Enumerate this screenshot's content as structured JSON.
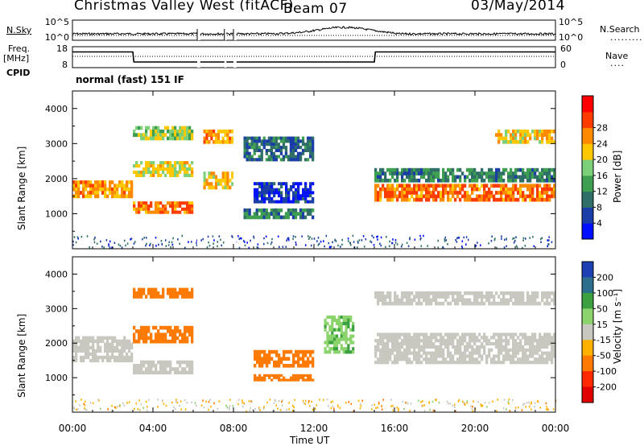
{
  "header": {
    "station": "Christmas Valley West (fitACF)",
    "beam": "Beam 07",
    "date": "03/May/2014"
  },
  "side_labels": {
    "nsky": "N.Sky",
    "freq": "Freq.",
    "freq_unit": "[MHz]",
    "cpid": "CPID",
    "nsearch": "N.Search",
    "nave": "Nave"
  },
  "cpid_text": "normal (fast) 151 IF",
  "axis_labels": {
    "slant_range": "Slant Range [km]",
    "time": "Time UT",
    "power": "Power [dB]",
    "velocity": "Velocity [m s⁻¹]"
  },
  "colors": {
    "power_scale": [
      "#0010ff",
      "#1a3da8",
      "#2f6f68",
      "#3f9f50",
      "#7dd07a",
      "#ffc800",
      "#ff8a00",
      "#ff3c00",
      "#ff0000"
    ],
    "velocity_scale": [
      "#1e3fb4",
      "#2c6f8c",
      "#3aa040",
      "#8bd36c",
      "#c8c8c0",
      "#ffb000",
      "#ff7a00",
      "#ff2800",
      "#e00000"
    ],
    "trace": "#000000"
  },
  "chart_data": [
    {
      "type": "line",
      "name": "noise-panel",
      "left_ticks": [
        "10^5",
        "10^0"
      ],
      "right_ticks": [
        "10^5",
        "10^0"
      ],
      "x_range": [
        0,
        24
      ]
    },
    {
      "type": "line",
      "name": "frequency-panel",
      "left_ticks": [
        "18",
        "8"
      ],
      "right_ticks": [
        "60",
        "0"
      ],
      "series_freq": [
        {
          "x": 0,
          "y": 15.5
        },
        {
          "x": 3.0,
          "y": 15.5
        },
        {
          "x": 3.05,
          "y": 10.7
        },
        {
          "x": 15.0,
          "y": 10.7
        },
        {
          "x": 15.05,
          "y": 15.5
        },
        {
          "x": 24,
          "y": 15.5
        }
      ],
      "x_range": [
        0,
        24
      ]
    },
    {
      "type": "heatmap",
      "name": "power",
      "ylabel": "Slant Range [km]",
      "y_ticks": [
        1000,
        2000,
        3000,
        4000
      ],
      "x_ticks": [
        "00:00",
        "04:00",
        "08:00",
        "12:00",
        "16:00",
        "20:00",
        "00:00"
      ],
      "y_range": [
        0,
        4500
      ],
      "x_range": [
        0,
        24
      ],
      "colorbar_ticks": [
        4,
        8,
        12,
        16,
        20,
        24,
        28
      ],
      "colorbar_label": "Power [dB]",
      "bands": [
        {
          "x": [
            0,
            3
          ],
          "y": [
            1450,
            1950
          ],
          "level": 24
        },
        {
          "x": [
            3,
            6
          ],
          "y": [
            1000,
            1350
          ],
          "level": 26
        },
        {
          "x": [
            3,
            6
          ],
          "y": [
            2050,
            2500
          ],
          "level": 20
        },
        {
          "x": [
            3,
            6
          ],
          "y": [
            3100,
            3500
          ],
          "level": 18
        },
        {
          "x": [
            6.5,
            8
          ],
          "y": [
            1700,
            2200
          ],
          "level": 22
        },
        {
          "x": [
            6.5,
            8
          ],
          "y": [
            3000,
            3400
          ],
          "level": 24
        },
        {
          "x": [
            8.5,
            12
          ],
          "y": [
            2500,
            3200
          ],
          "level": 10
        },
        {
          "x": [
            8.5,
            12
          ],
          "y": [
            850,
            1150
          ],
          "level": 12
        },
        {
          "x": [
            9,
            12
          ],
          "y": [
            1300,
            1900
          ],
          "level": 6
        },
        {
          "x": [
            15,
            24
          ],
          "y": [
            1350,
            1850
          ],
          "level": 26
        },
        {
          "x": [
            15,
            24
          ],
          "y": [
            1900,
            2300
          ],
          "level": 12
        },
        {
          "x": [
            21,
            24
          ],
          "y": [
            3000,
            3400
          ],
          "level": 22
        }
      ]
    },
    {
      "type": "heatmap",
      "name": "velocity",
      "ylabel": "Slant Range [km]",
      "y_ticks": [
        1000,
        2000,
        3000,
        4000
      ],
      "x_ticks": [
        "00:00",
        "04:00",
        "08:00",
        "12:00",
        "16:00",
        "20:00",
        "00:00"
      ],
      "y_range": [
        0,
        4500
      ],
      "x_range": [
        0,
        24
      ],
      "colorbar_ticks": [
        200,
        100,
        50,
        15,
        -15,
        -50,
        -100,
        -200
      ],
      "colorbar_label": "Velocity [m s⁻¹]",
      "bands": [
        {
          "x": [
            0,
            3
          ],
          "y": [
            1450,
            2200
          ],
          "level": 0
        },
        {
          "x": [
            3,
            6
          ],
          "y": [
            1100,
            1500
          ],
          "level": 0
        },
        {
          "x": [
            3,
            6
          ],
          "y": [
            2000,
            2500
          ],
          "level": -60
        },
        {
          "x": [
            3,
            6
          ],
          "y": [
            3300,
            3600
          ],
          "level": -60
        },
        {
          "x": [
            9,
            12
          ],
          "y": [
            900,
            1100
          ],
          "level": -60
        },
        {
          "x": [
            9,
            12
          ],
          "y": [
            1300,
            1800
          ],
          "level": -60
        },
        {
          "x": [
            12.5,
            14
          ],
          "y": [
            1700,
            2800
          ],
          "level": 30
        },
        {
          "x": [
            15,
            24
          ],
          "y": [
            1400,
            2300
          ],
          "level": 0
        },
        {
          "x": [
            15,
            24
          ],
          "y": [
            3100,
            3500
          ],
          "level": 0
        }
      ]
    }
  ]
}
